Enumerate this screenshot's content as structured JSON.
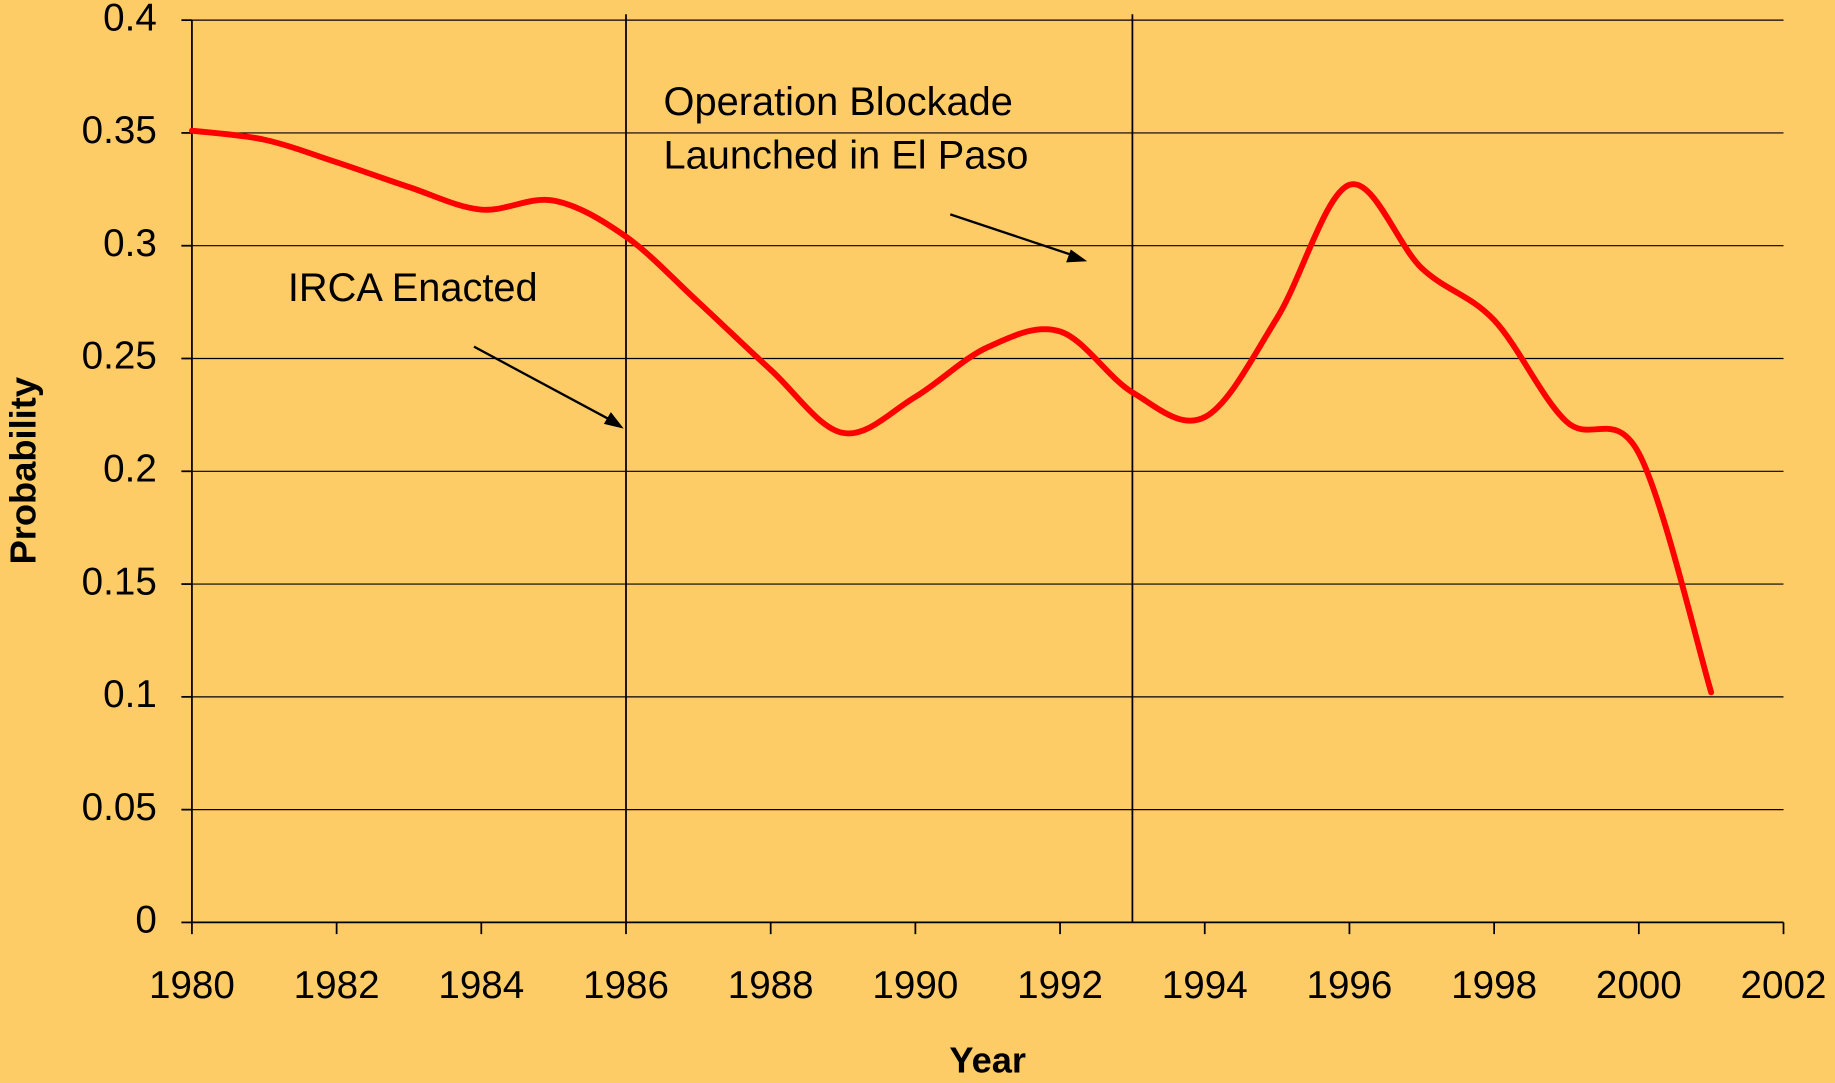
{
  "chart_data": {
    "type": "line",
    "x_label": "Year",
    "y_label": "Probability",
    "x": [
      1980,
      1981,
      1982,
      1983,
      1984,
      1985,
      1986,
      1987,
      1988,
      1989,
      1990,
      1991,
      1992,
      1993,
      1994,
      1995,
      1996,
      1997,
      1998,
      1999,
      2000,
      2001
    ],
    "series": [
      {
        "color": "#FF0000",
        "values": [
          0.351,
          0.347,
          0.337,
          0.326,
          0.316,
          0.32,
          0.304,
          0.275,
          0.245,
          0.217,
          0.233,
          0.255,
          0.262,
          0.235,
          0.224,
          0.268,
          0.327,
          0.29,
          0.267,
          0.222,
          0.208,
          0.102
        ]
      }
    ],
    "xlim": [
      1980,
      2002
    ],
    "xticks": [
      1980,
      1982,
      1984,
      1986,
      1988,
      1990,
      1992,
      1994,
      1996,
      1998,
      2000,
      2002
    ],
    "ylim": [
      0,
      0.4
    ],
    "yticks": [
      0,
      0.05,
      0.1,
      0.15,
      0.2,
      0.25,
      0.3,
      0.35,
      0.4
    ],
    "grid": true,
    "annotations": [
      {
        "x": 1986,
        "lines": [
          "IRCA Enacted"
        ]
      },
      {
        "x": 1993,
        "lines": [
          "Operation Blockade",
          "Launched in El Paso"
        ]
      }
    ]
  }
}
